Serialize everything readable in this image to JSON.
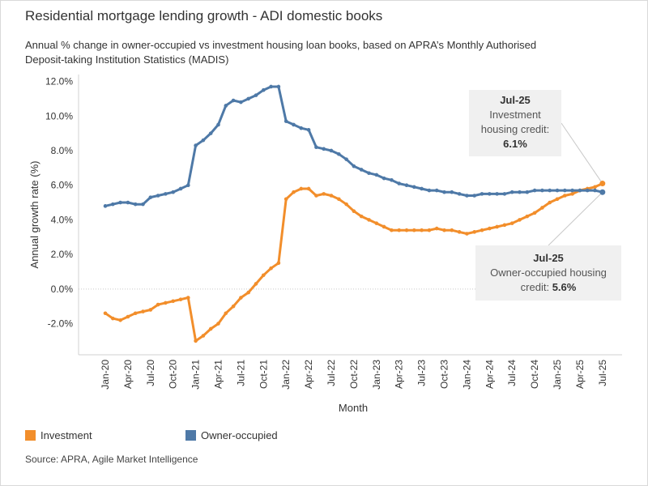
{
  "header": {
    "title": "Residential mortgage lending growth - ADI domestic books",
    "subtitle_line1": "Annual % change in owner-occupied vs investment housing loan books, based on APRA’s Monthly Authorised",
    "subtitle_line2": "Deposit-taking Institution Statistics (MADIS)"
  },
  "chart_data": {
    "type": "line",
    "x": [
      "Jan-20",
      "Feb-20",
      "Mar-20",
      "Apr-20",
      "May-20",
      "Jun-20",
      "Jul-20",
      "Aug-20",
      "Sep-20",
      "Oct-20",
      "Nov-20",
      "Dec-20",
      "Jan-21",
      "Feb-21",
      "Mar-21",
      "Apr-21",
      "May-21",
      "Jun-21",
      "Jul-21",
      "Aug-21",
      "Sep-21",
      "Oct-21",
      "Nov-21",
      "Dec-21",
      "Jan-22",
      "Feb-22",
      "Mar-22",
      "Apr-22",
      "May-22",
      "Jun-22",
      "Jul-22",
      "Aug-22",
      "Sep-22",
      "Oct-22",
      "Nov-22",
      "Dec-22",
      "Jan-23",
      "Feb-23",
      "Mar-23",
      "Apr-23",
      "May-23",
      "Jun-23",
      "Jul-23",
      "Aug-23",
      "Sep-23",
      "Oct-23",
      "Nov-23",
      "Dec-23",
      "Jan-24",
      "Feb-24",
      "Mar-24",
      "Apr-24",
      "May-24",
      "Jun-24",
      "Jul-24",
      "Aug-24",
      "Sep-24",
      "Oct-24",
      "Nov-24",
      "Dec-24",
      "Jan-25",
      "Feb-25",
      "Mar-25",
      "Apr-25",
      "May-25",
      "Jun-25",
      "Jul-25"
    ],
    "tick_labels": [
      "Jan-20",
      "Apr-20",
      "Jul-20",
      "Oct-20",
      "Jan-21",
      "Apr-21",
      "Jul-21",
      "Oct-21",
      "Jan-22",
      "Apr-22",
      "Jul-22",
      "Oct-22",
      "Jan-23",
      "Apr-23",
      "Jul-23",
      "Oct-23",
      "Jan-24",
      "Apr-24",
      "Jul-24",
      "Oct-24",
      "Jan-25",
      "Apr-25",
      "Jul-25"
    ],
    "series": [
      {
        "name": "Investment",
        "color": "#f28e2b",
        "values": [
          -1.4,
          -1.7,
          -1.8,
          -1.6,
          -1.4,
          -1.3,
          -1.2,
          -0.9,
          -0.8,
          -0.7,
          -0.6,
          -0.5,
          -3.0,
          -2.7,
          -2.3,
          -2.0,
          -1.4,
          -1.0,
          -0.5,
          -0.2,
          0.3,
          0.8,
          1.2,
          1.5,
          5.2,
          5.6,
          5.8,
          5.8,
          5.4,
          5.5,
          5.4,
          5.2,
          4.9,
          4.5,
          4.2,
          4.0,
          3.8,
          3.6,
          3.4,
          3.4,
          3.4,
          3.4,
          3.4,
          3.4,
          3.5,
          3.4,
          3.4,
          3.3,
          3.2,
          3.3,
          3.4,
          3.5,
          3.6,
          3.7,
          3.8,
          4.0,
          4.2,
          4.4,
          4.7,
          5.0,
          5.2,
          5.4,
          5.5,
          5.7,
          5.8,
          5.9,
          6.1
        ]
      },
      {
        "name": "Owner-occupied",
        "color": "#4e79a7",
        "values": [
          4.8,
          4.9,
          5.0,
          5.0,
          4.9,
          4.9,
          5.3,
          5.4,
          5.5,
          5.6,
          5.8,
          6.0,
          8.3,
          8.6,
          9.0,
          9.5,
          10.6,
          10.9,
          10.8,
          11.0,
          11.2,
          11.5,
          11.7,
          11.7,
          9.7,
          9.5,
          9.3,
          9.2,
          8.2,
          8.1,
          8.0,
          7.8,
          7.5,
          7.1,
          6.9,
          6.7,
          6.6,
          6.4,
          6.3,
          6.1,
          6.0,
          5.9,
          5.8,
          5.7,
          5.7,
          5.6,
          5.6,
          5.5,
          5.4,
          5.4,
          5.5,
          5.5,
          5.5,
          5.5,
          5.6,
          5.6,
          5.6,
          5.7,
          5.7,
          5.7,
          5.7,
          5.7,
          5.7,
          5.7,
          5.7,
          5.7,
          5.6
        ]
      }
    ],
    "yticks": [
      "12.0%",
      "10.0%",
      "8.0%",
      "6.0%",
      "4.0%",
      "2.0%",
      "0.0%",
      "-2.0%"
    ],
    "ylim": [
      -3.8,
      12.4
    ],
    "xlabel": "Month",
    "ylabel": "Annual growth rate (%)",
    "legend_position": "bottom-left",
    "zero_line": true
  },
  "callouts": {
    "investment": {
      "date": "Jul-25",
      "line1": "Investment",
      "line2": "housing credit:",
      "value": "6.1%"
    },
    "owner": {
      "date": "Jul-25",
      "line1": "Owner-occupied housing",
      "line2": "credit: ",
      "value": "5.6%"
    }
  },
  "legend": [
    {
      "label": "Investment",
      "color": "#f28e2b"
    },
    {
      "label": "Owner-occupied",
      "color": "#4e79a7"
    }
  ],
  "footer": {
    "source": "Source: APRA, Agile Market Intelligence"
  }
}
